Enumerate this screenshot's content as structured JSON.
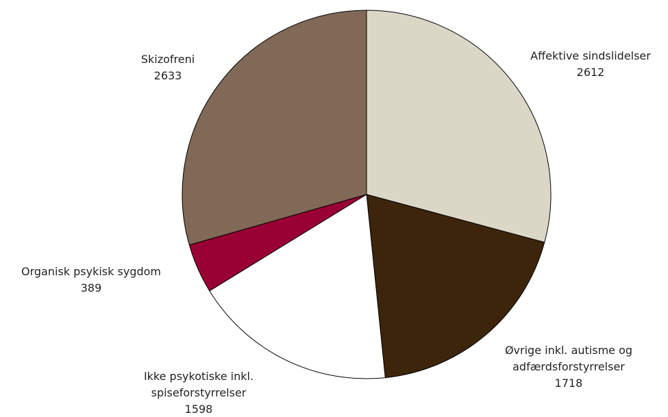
{
  "chart_data": {
    "type": "pie",
    "categories": [
      "Affektive sindslidelser",
      "Øvrige inkl. autisme og\nadfærdsforstyrrelser",
      "Ikke psykotiske inkl.\nspiseforstyrrelser",
      "Organisk psykisk sygdom",
      "Skizofreni"
    ],
    "values": [
      2612,
      1718,
      1598,
      389,
      2633
    ],
    "colors": [
      "#dbd7c7",
      "#3d250c",
      "#ffffff",
      "#990033",
      "#806957"
    ]
  }
}
